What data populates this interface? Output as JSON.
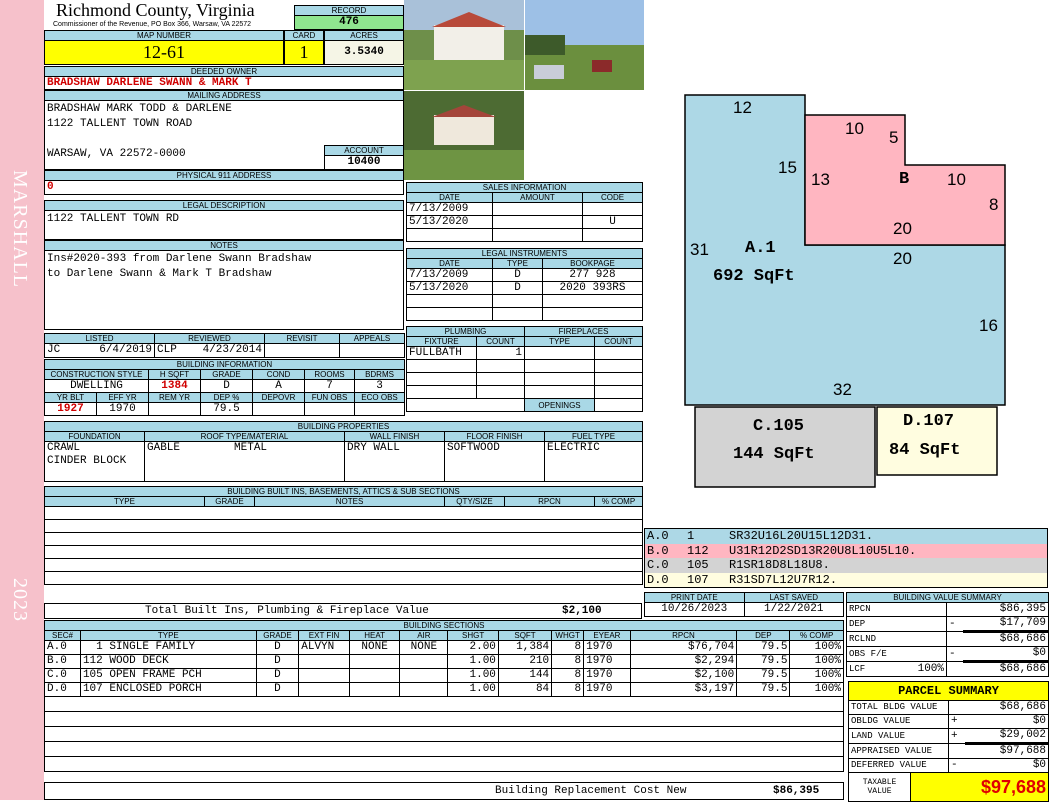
{
  "side": {
    "district": "MARSHALL",
    "year": "2023"
  },
  "header": {
    "county": "Richmond County, Virginia",
    "subtitle": "Commissioner of the Revenue, PO Box 366, Warsaw, VA 22572",
    "record_label": "RECORD",
    "record": "476"
  },
  "parcel": {
    "map_label": "MAP NUMBER",
    "map": "12-61",
    "card_label": "CARD",
    "card": "1",
    "acres_label": "ACRES",
    "acres": "3.5340"
  },
  "owner": {
    "label": "DEEDED OWNER",
    "value": "BRADSHAW DARLENE SWANN & MARK T"
  },
  "mailing": {
    "label": "MAILING ADDRESS",
    "line1": "BRADSHAW MARK TODD & DARLENE",
    "line2": "1122 TALLENT TOWN ROAD",
    "line3": "WARSAW, VA 22572-0000",
    "account_label": "ACCOUNT",
    "account": "10400"
  },
  "physical": {
    "label": "PHYSICAL 911 ADDRESS",
    "value": "0"
  },
  "legal": {
    "label": "LEGAL DESCRIPTION",
    "value": "1122 TALLENT TOWN RD"
  },
  "notes": {
    "label": "NOTES",
    "line1": "Ins#2020-393 from Darlene Swann Bradshaw",
    "line2": "to Darlene Swann & Mark T Bradshaw"
  },
  "listing": {
    "headers": [
      "LISTED",
      "REVIEWED",
      "REVISIT",
      "APPEALS"
    ],
    "listed_by": "JC",
    "listed_date": "6/4/2019",
    "reviewed_by": "CLP",
    "reviewed_date": "4/23/2014"
  },
  "building_info": {
    "title": "BUILDING INFORMATION",
    "headers1": [
      "CONSTRUCTION STYLE",
      "H SQFT",
      "GRADE",
      "COND",
      "ROOMS",
      "BDRMS"
    ],
    "values1": [
      "DWELLING",
      "1384",
      "D",
      "A",
      "7",
      "3"
    ],
    "headers2": [
      "YR BLT",
      "EFF YR",
      "REM YR",
      "DEP %",
      "DEPOVR",
      "FUN OBS",
      "ECO OBS"
    ],
    "values2": [
      "1927",
      "1970",
      "",
      "79.5",
      "",
      "",
      ""
    ]
  },
  "building_properties": {
    "title": "BUILDING PROPERTIES",
    "headers": [
      "FOUNDATION",
      "ROOF TYPE/MATERIAL",
      "WALL FINISH",
      "FLOOR FINISH",
      "FUEL TYPE"
    ],
    "foundation": "CRAWL\nCINDER BLOCK",
    "roof_type": "GABLE",
    "roof_material": "METAL",
    "wall": "DRY WALL",
    "floor": "SOFTWOOD",
    "fuel": "ELECTRIC"
  },
  "built_ins": {
    "title": "BUILDING BUILT INS, BASEMENTS, ATTICS & SUB SECTIONS",
    "headers": [
      "TYPE",
      "GRADE",
      "NOTES",
      "QTY/SIZE",
      "RPCN",
      "% COMP"
    ],
    "total_label": "Total Built Ins, Plumbing & Fireplace Value",
    "total": "$2,100"
  },
  "sales": {
    "title": "SALES INFORMATION",
    "headers": [
      "DATE",
      "AMOUNT",
      "CODE"
    ],
    "rows": [
      [
        "7/13/2009",
        "",
        ""
      ],
      [
        "5/13/2020",
        "",
        "U"
      ]
    ]
  },
  "instruments": {
    "title": "LEGAL INSTRUMENTS",
    "headers": [
      "DATE",
      "TYPE",
      "BOOKPAGE"
    ],
    "rows": [
      [
        "7/13/2009",
        "D",
        "277 928"
      ],
      [
        "5/13/2020",
        "D",
        "2020 393RS"
      ]
    ]
  },
  "plumbing": {
    "title": "PLUMBING",
    "headers": [
      "FIXTURE",
      "COUNT"
    ],
    "rows": [
      [
        "FULLBATH",
        "1"
      ]
    ]
  },
  "fireplaces": {
    "title": "FIREPLACES",
    "headers": [
      "TYPE",
      "COUNT"
    ],
    "openings_label": "OPENINGS"
  },
  "sketch": {
    "colors": {
      "A": "#add8e6",
      "B": "#ffb6c1",
      "C": "#d3d3d3",
      "D": "#fffde0"
    },
    "labels": {
      "a_dims": [
        "12",
        "15",
        "31",
        "20",
        "16",
        "32"
      ],
      "b_dims": [
        "10",
        "5",
        "13",
        "10",
        "8",
        "20"
      ],
      "a_name": "A.1",
      "a_area": "692 SqFt",
      "b_name": "B",
      "c_name": "C.105",
      "c_area": "144 SqFt",
      "d_name": "D.107",
      "d_area": "84 SqFt"
    },
    "codes": [
      [
        "A.0",
        "1",
        "SR32U16L20U15L12D31."
      ],
      [
        "B.0",
        "112",
        "U31R12D2SD13R20U8L10U5L10."
      ],
      [
        "C.0",
        "105",
        "R1SR18D8L18U8."
      ],
      [
        "D.0",
        "107",
        "R31SD7L12U7R12."
      ]
    ]
  },
  "dates": {
    "print_label": "PRINT DATE",
    "print": "10/26/2023",
    "saved_label": "LAST SAVED",
    "saved": "1/22/2021"
  },
  "sections": {
    "title": "BUILDING SECTIONS",
    "headers": [
      "SEC#",
      "TYPE",
      "GRADE",
      "EXT FIN",
      "HEAT",
      "AIR",
      "SHGT",
      "SQFT",
      "WHGT",
      "EYEAR",
      "RPCN",
      "DEP",
      "% COMP"
    ],
    "rows": [
      [
        "A.0",
        "  1 SINGLE FAMILY",
        "D",
        "ALVYN",
        "NONE",
        "NONE",
        "2.00",
        "1,384",
        "8",
        "1970",
        "$76,704",
        "79.5",
        "100%"
      ],
      [
        "B.0",
        "112 WOOD DECK",
        "D",
        "",
        "",
        "",
        "1.00",
        "210",
        "8",
        "1970",
        "$2,294",
        "79.5",
        "100%"
      ],
      [
        "C.0",
        "105 OPEN FRAME PCH",
        "D",
        "",
        "",
        "",
        "1.00",
        "144",
        "8",
        "1970",
        "$2,100",
        "79.5",
        "100%"
      ],
      [
        "D.0",
        "107 ENCLOSED PORCH",
        "D",
        "",
        "",
        "",
        "1.00",
        "84",
        "8",
        "1970",
        "$3,197",
        "79.5",
        "100%"
      ]
    ],
    "total_label": "Building Replacement Cost New",
    "total": "$86,395"
  },
  "value_summary": {
    "title": "BUILDING VALUE SUMMARY",
    "rows": [
      [
        "RPCN",
        "",
        "",
        "$86,395"
      ],
      [
        "DEP",
        "",
        "-",
        "$17,709"
      ],
      [
        "RCLND",
        "",
        "",
        "$68,686"
      ],
      [
        "OBS F/E",
        "",
        "-",
        "$0"
      ],
      [
        "LCF",
        "100%",
        "",
        "$68,686"
      ]
    ]
  },
  "parcel_summary": {
    "title": "PARCEL SUMMARY",
    "rows": [
      [
        "TOTAL BLDG VALUE",
        "",
        "$68,686"
      ],
      [
        "OBLDG VALUE",
        "+",
        "$0"
      ],
      [
        "LAND VALUE",
        "+",
        "$29,002"
      ],
      [
        "APPRAISED VALUE",
        "",
        "$97,688"
      ],
      [
        "DEFERRED VALUE",
        "-",
        "$0"
      ]
    ],
    "taxable_label": "TAXABLE VALUE",
    "taxable": "$97,688"
  }
}
